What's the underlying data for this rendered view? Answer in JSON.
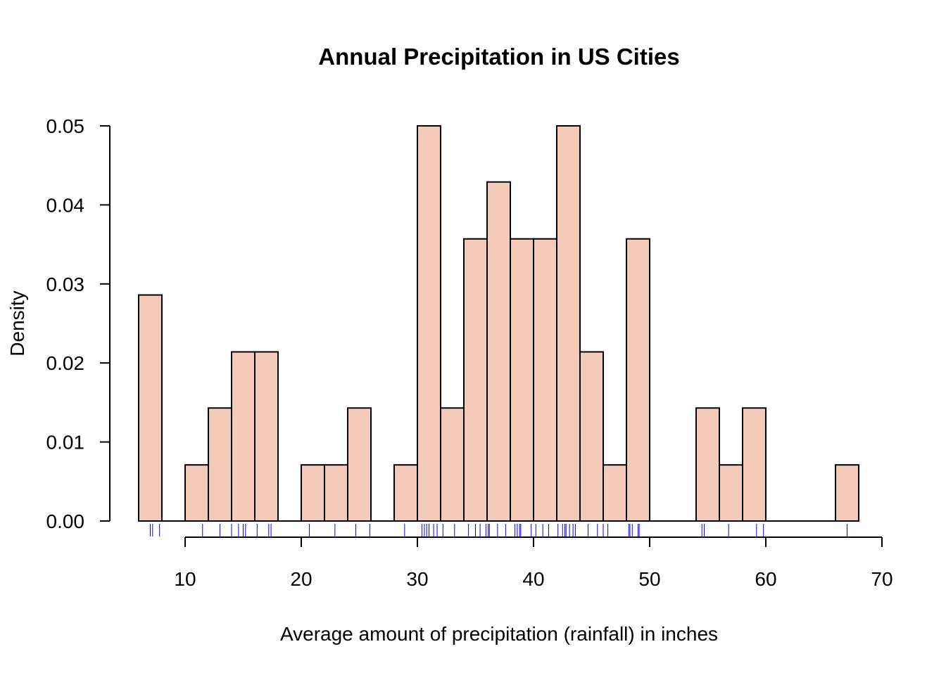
{
  "chart_data": {
    "type": "bar",
    "subtype": "histogram",
    "title": "Annual Precipitation in US Cities",
    "xlabel": "Average amount of precipitation (rainfall) in inches",
    "ylabel": "Density",
    "xlim": [
      6,
      70
    ],
    "ylim": [
      0,
      0.05
    ],
    "x_ticks": [
      10,
      20,
      30,
      40,
      50,
      60,
      70
    ],
    "y_ticks": [
      0,
      0.01,
      0.02,
      0.03,
      0.04,
      0.05
    ],
    "y_tick_labels": [
      "0.00",
      "0.01",
      "0.02",
      "0.03",
      "0.04",
      "0.05"
    ],
    "bin_width": 2,
    "bins": [
      {
        "x0": 6,
        "x1": 8,
        "density": 0.0286
      },
      {
        "x0": 8,
        "x1": 10,
        "density": 0
      },
      {
        "x0": 10,
        "x1": 12,
        "density": 0.0071
      },
      {
        "x0": 12,
        "x1": 14,
        "density": 0.0143
      },
      {
        "x0": 14,
        "x1": 16,
        "density": 0.0214
      },
      {
        "x0": 16,
        "x1": 18,
        "density": 0.0214
      },
      {
        "x0": 18,
        "x1": 20,
        "density": 0
      },
      {
        "x0": 20,
        "x1": 22,
        "density": 0.0071
      },
      {
        "x0": 22,
        "x1": 24,
        "density": 0.0071
      },
      {
        "x0": 24,
        "x1": 26,
        "density": 0.0143
      },
      {
        "x0": 26,
        "x1": 28,
        "density": 0
      },
      {
        "x0": 28,
        "x1": 30,
        "density": 0.0071
      },
      {
        "x0": 30,
        "x1": 32,
        "density": 0.05
      },
      {
        "x0": 32,
        "x1": 34,
        "density": 0.0143
      },
      {
        "x0": 34,
        "x1": 36,
        "density": 0.0357
      },
      {
        "x0": 36,
        "x1": 38,
        "density": 0.0429
      },
      {
        "x0": 38,
        "x1": 40,
        "density": 0.0357
      },
      {
        "x0": 40,
        "x1": 42,
        "density": 0.0357
      },
      {
        "x0": 42,
        "x1": 44,
        "density": 0.05
      },
      {
        "x0": 44,
        "x1": 46,
        "density": 0.0214
      },
      {
        "x0": 46,
        "x1": 48,
        "density": 0.0071
      },
      {
        "x0": 48,
        "x1": 50,
        "density": 0.0357
      },
      {
        "x0": 50,
        "x1": 52,
        "density": 0
      },
      {
        "x0": 52,
        "x1": 54,
        "density": 0
      },
      {
        "x0": 54,
        "x1": 56,
        "density": 0.0143
      },
      {
        "x0": 56,
        "x1": 58,
        "density": 0.0071
      },
      {
        "x0": 58,
        "x1": 60,
        "density": 0.0143
      },
      {
        "x0": 60,
        "x1": 62,
        "density": 0
      },
      {
        "x0": 62,
        "x1": 64,
        "density": 0
      },
      {
        "x0": 64,
        "x1": 66,
        "density": 0
      },
      {
        "x0": 66,
        "x1": 68,
        "density": 0.0071
      }
    ],
    "rug_values": [
      7.0,
      7.2,
      7.8,
      11.5,
      13.0,
      14.0,
      14.6,
      15.0,
      15.2,
      16.2,
      17.2,
      17.4,
      20.7,
      22.9,
      24.7,
      25.9,
      28.9,
      30.4,
      30.6,
      30.8,
      31.0,
      31.4,
      31.7,
      32.2,
      33.2,
      34.4,
      35.0,
      35.4,
      35.9,
      36.1,
      36.2,
      36.9,
      37.6,
      38.4,
      38.6,
      38.8,
      38.9,
      39.8,
      40.2,
      40.8,
      41.3,
      42.1,
      42.5,
      42.7,
      42.8,
      43.1,
      43.4,
      43.6,
      44.7,
      45.5,
      46.0,
      46.4,
      48.2,
      48.3,
      48.5,
      49.0,
      49.1,
      54.5,
      54.7,
      56.8,
      59.2,
      59.8,
      67.0
    ],
    "fill_color": "#f4cbb9",
    "edge_color": "#000000",
    "rug_color": "#0000ff",
    "grid": false,
    "legend": "none"
  }
}
